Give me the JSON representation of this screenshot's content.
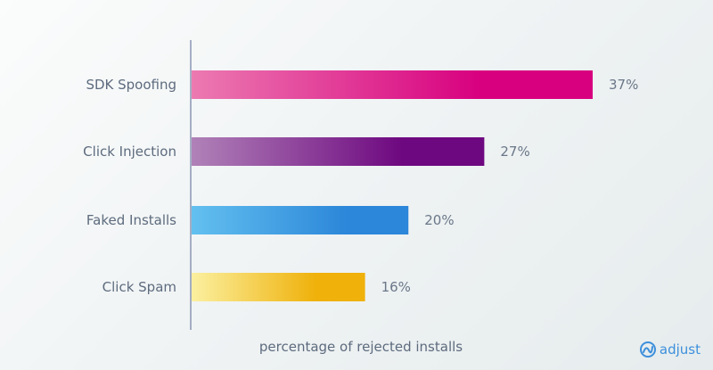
{
  "chart_data": {
    "type": "bar",
    "orientation": "horizontal",
    "categories": [
      "SDK Spoofing",
      "Click Injection",
      "Faked Installs",
      "Click Spam"
    ],
    "values": [
      37,
      27,
      20,
      16
    ],
    "value_labels": [
      "37%",
      "27%",
      "20%",
      "16%"
    ],
    "xlabel": "percentage of rejected installs",
    "ylabel": "",
    "title": "",
    "xlim": [
      0,
      40
    ],
    "grid": false,
    "colors": [
      [
        "#ec7ab1",
        "#d8007f"
      ],
      [
        "#b082b8",
        "#6e0880"
      ],
      [
        "#63c0ef",
        "#2c86d9"
      ],
      [
        "#fbf0a0",
        "#efb10a"
      ]
    ]
  },
  "brand": {
    "logo_text": "adjust",
    "logo_color": "#3d8fdc"
  }
}
